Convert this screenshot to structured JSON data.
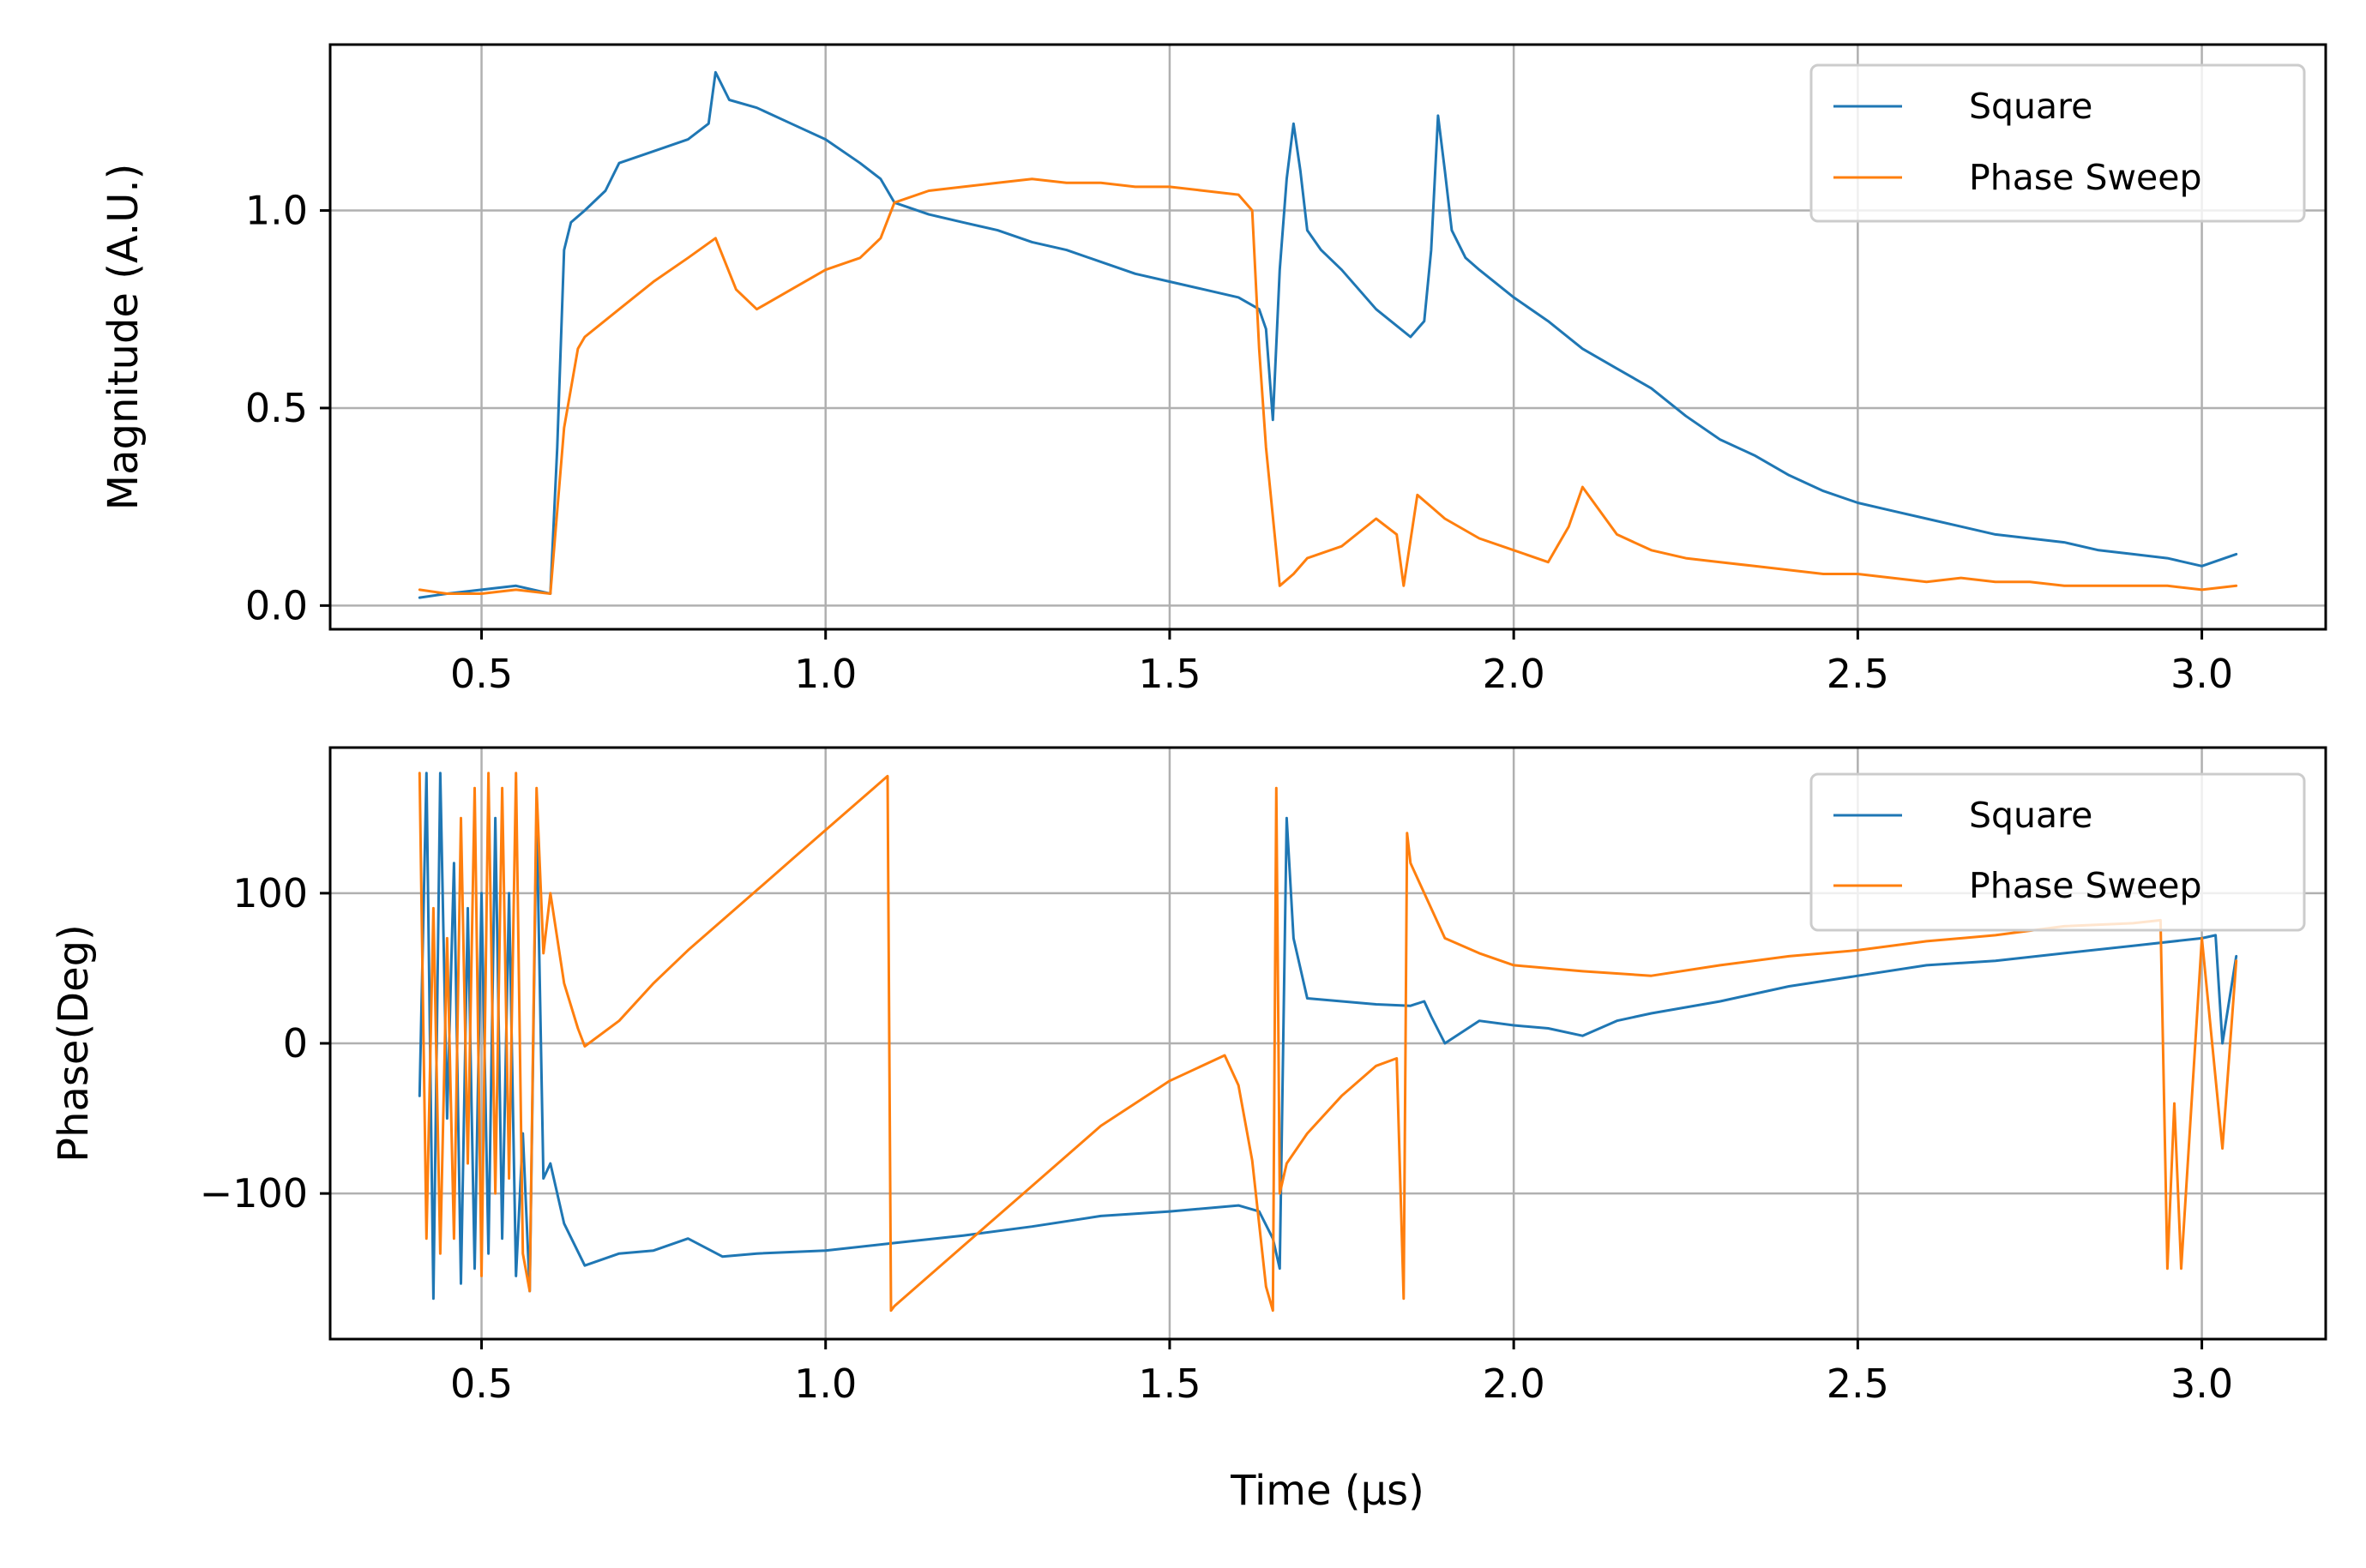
{
  "chart_data": [
    {
      "type": "line",
      "xlabel": "",
      "ylabel": "Magnitude (A.U.)",
      "xlim": [
        0.28,
        3.18
      ],
      "ylim": [
        -0.06,
        1.42
      ],
      "grid": true,
      "legend_position": "top-right",
      "xticks": [
        0.5,
        1.0,
        1.5,
        2.0,
        2.5,
        3.0
      ],
      "xtick_labels": [
        "0.5",
        "1.0",
        "1.5",
        "2.0",
        "2.5",
        "3.0"
      ],
      "yticks": [
        0.0,
        0.5,
        1.0
      ],
      "ytick_labels": [
        "0.0",
        "0.5",
        "1.0"
      ],
      "series": [
        {
          "name": "Square",
          "color": "#1f77b4",
          "x": [
            0.41,
            0.45,
            0.5,
            0.55,
            0.6,
            0.61,
            0.62,
            0.63,
            0.65,
            0.68,
            0.7,
            0.75,
            0.8,
            0.83,
            0.84,
            0.86,
            0.9,
            0.95,
            1.0,
            1.05,
            1.08,
            1.1,
            1.15,
            1.2,
            1.25,
            1.3,
            1.35,
            1.4,
            1.45,
            1.5,
            1.55,
            1.6,
            1.63,
            1.64,
            1.65,
            1.66,
            1.67,
            1.68,
            1.69,
            1.7,
            1.72,
            1.75,
            1.8,
            1.85,
            1.86,
            1.87,
            1.88,
            1.89,
            1.9,
            1.91,
            1.93,
            1.95,
            2.0,
            2.05,
            2.1,
            2.15,
            2.2,
            2.25,
            2.3,
            2.35,
            2.4,
            2.45,
            2.5,
            2.55,
            2.6,
            2.65,
            2.7,
            2.75,
            2.8,
            2.85,
            2.9,
            2.95,
            3.0,
            3.05
          ],
          "y": [
            0.02,
            0.03,
            0.04,
            0.05,
            0.03,
            0.4,
            0.9,
            0.97,
            1.0,
            1.05,
            1.12,
            1.15,
            1.18,
            1.22,
            1.35,
            1.28,
            1.26,
            1.22,
            1.18,
            1.12,
            1.08,
            1.02,
            0.99,
            0.97,
            0.95,
            0.92,
            0.9,
            0.87,
            0.84,
            0.82,
            0.8,
            0.78,
            0.75,
            0.7,
            0.47,
            0.85,
            1.08,
            1.22,
            1.1,
            0.95,
            0.9,
            0.85,
            0.75,
            0.68,
            0.7,
            0.72,
            0.9,
            1.24,
            1.1,
            0.95,
            0.88,
            0.85,
            0.78,
            0.72,
            0.65,
            0.6,
            0.55,
            0.48,
            0.42,
            0.38,
            0.33,
            0.29,
            0.26,
            0.24,
            0.22,
            0.2,
            0.18,
            0.17,
            0.16,
            0.14,
            0.13,
            0.12,
            0.1,
            0.13
          ]
        },
        {
          "name": "Phase Sweep",
          "color": "#ff7f0e",
          "x": [
            0.41,
            0.45,
            0.5,
            0.55,
            0.6,
            0.62,
            0.64,
            0.65,
            0.7,
            0.75,
            0.8,
            0.84,
            0.87,
            0.9,
            0.95,
            1.0,
            1.05,
            1.08,
            1.1,
            1.15,
            1.2,
            1.25,
            1.3,
            1.35,
            1.4,
            1.45,
            1.5,
            1.55,
            1.6,
            1.62,
            1.63,
            1.64,
            1.66,
            1.68,
            1.7,
            1.75,
            1.8,
            1.83,
            1.84,
            1.86,
            1.88,
            1.9,
            1.95,
            2.0,
            2.05,
            2.08,
            2.1,
            2.15,
            2.2,
            2.25,
            2.3,
            2.35,
            2.4,
            2.45,
            2.5,
            2.55,
            2.6,
            2.65,
            2.7,
            2.75,
            2.8,
            2.85,
            2.9,
            2.95,
            3.0,
            3.05
          ],
          "y": [
            0.04,
            0.03,
            0.03,
            0.04,
            0.03,
            0.45,
            0.65,
            0.68,
            0.75,
            0.82,
            0.88,
            0.93,
            0.8,
            0.75,
            0.8,
            0.85,
            0.88,
            0.93,
            1.02,
            1.05,
            1.06,
            1.07,
            1.08,
            1.07,
            1.07,
            1.06,
            1.06,
            1.05,
            1.04,
            1.0,
            0.65,
            0.4,
            0.05,
            0.08,
            0.12,
            0.15,
            0.22,
            0.18,
            0.05,
            0.28,
            0.25,
            0.22,
            0.17,
            0.14,
            0.11,
            0.2,
            0.3,
            0.18,
            0.14,
            0.12,
            0.11,
            0.1,
            0.09,
            0.08,
            0.08,
            0.07,
            0.06,
            0.07,
            0.06,
            0.06,
            0.05,
            0.05,
            0.05,
            0.05,
            0.04,
            0.05
          ]
        }
      ]
    },
    {
      "type": "line",
      "xlabel": "Time (μs)",
      "ylabel": "Phase(Deg)",
      "xlim": [
        0.28,
        3.18
      ],
      "ylim": [
        -197,
        197
      ],
      "grid": true,
      "legend_position": "top-right",
      "xticks": [
        0.5,
        1.0,
        1.5,
        2.0,
        2.5,
        3.0
      ],
      "xtick_labels": [
        "0.5",
        "1.0",
        "1.5",
        "2.0",
        "2.5",
        "3.0"
      ],
      "yticks": [
        -100,
        0,
        100
      ],
      "ytick_labels": [
        "−100",
        "0",
        "100"
      ],
      "series": [
        {
          "name": "Square",
          "color": "#1f77b4",
          "x": [
            0.41,
            0.42,
            0.43,
            0.44,
            0.45,
            0.46,
            0.47,
            0.48,
            0.49,
            0.5,
            0.51,
            0.52,
            0.53,
            0.54,
            0.55,
            0.56,
            0.57,
            0.58,
            0.59,
            0.6,
            0.62,
            0.65,
            0.7,
            0.75,
            0.8,
            0.85,
            0.9,
            1.0,
            1.1,
            1.2,
            1.3,
            1.4,
            1.5,
            1.6,
            1.63,
            1.65,
            1.66,
            1.67,
            1.68,
            1.7,
            1.75,
            1.8,
            1.85,
            1.87,
            1.88,
            1.9,
            1.95,
            2.0,
            2.05,
            2.1,
            2.15,
            2.2,
            2.3,
            2.4,
            2.5,
            2.6,
            2.7,
            2.8,
            2.9,
            3.0,
            3.02,
            3.03,
            3.05
          ],
          "y": [
            -35,
            180,
            -170,
            180,
            -50,
            120,
            -160,
            90,
            -150,
            100,
            -140,
            150,
            -130,
            100,
            -155,
            -60,
            -165,
            155,
            -90,
            -80,
            -120,
            -148,
            -140,
            -138,
            -130,
            -142,
            -140,
            -138,
            -133,
            -128,
            -122,
            -115,
            -112,
            -108,
            -112,
            -130,
            -150,
            150,
            70,
            30,
            28,
            26,
            25,
            28,
            18,
            0,
            15,
            12,
            10,
            5,
            15,
            20,
            28,
            38,
            45,
            52,
            55,
            60,
            65,
            70,
            72,
            0,
            58
          ]
        },
        {
          "name": "Phase Sweep",
          "color": "#ff7f0e",
          "x": [
            0.41,
            0.42,
            0.43,
            0.44,
            0.45,
            0.46,
            0.47,
            0.48,
            0.49,
            0.5,
            0.51,
            0.52,
            0.53,
            0.54,
            0.55,
            0.56,
            0.57,
            0.58,
            0.59,
            0.6,
            0.62,
            0.64,
            0.65,
            0.7,
            0.75,
            0.8,
            0.85,
            0.9,
            0.95,
            1.0,
            1.05,
            1.09,
            1.095,
            1.1,
            1.2,
            1.3,
            1.4,
            1.5,
            1.58,
            1.6,
            1.62,
            1.64,
            1.65,
            1.655,
            1.66,
            1.67,
            1.7,
            1.75,
            1.8,
            1.83,
            1.84,
            1.845,
            1.85,
            1.9,
            1.95,
            2.0,
            2.1,
            2.2,
            2.3,
            2.4,
            2.5,
            2.6,
            2.7,
            2.8,
            2.9,
            2.94,
            2.95,
            2.96,
            2.97,
            3.0,
            3.03,
            3.05
          ],
          "y": [
            180,
            -130,
            90,
            -140,
            70,
            -130,
            150,
            -80,
            170,
            -155,
            180,
            -100,
            170,
            -90,
            180,
            -140,
            -165,
            170,
            60,
            100,
            40,
            10,
            -2,
            15,
            40,
            62,
            82,
            102,
            122,
            142,
            162,
            178,
            -178,
            -175,
            -135,
            -95,
            -55,
            -25,
            -8,
            -28,
            -78,
            -162,
            -178,
            170,
            -100,
            -80,
            -60,
            -35,
            -15,
            -10,
            -170,
            140,
            120,
            70,
            60,
            52,
            48,
            45,
            52,
            58,
            62,
            68,
            72,
            78,
            80,
            82,
            -150,
            -40,
            -150,
            70,
            -70,
            55
          ]
        }
      ]
    }
  ]
}
